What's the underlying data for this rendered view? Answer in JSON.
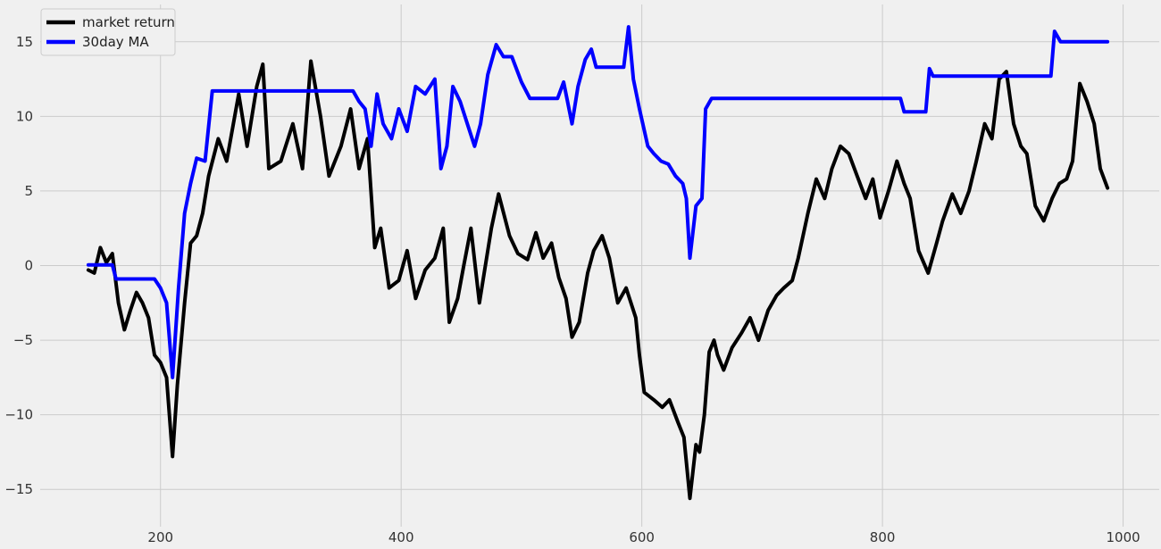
{
  "chart_data": {
    "type": "line",
    "title": "",
    "xlabel": "",
    "ylabel": "",
    "xlim": [
      100,
      1030
    ],
    "ylim": [
      -17.5,
      17.5
    ],
    "xticks": [
      200,
      400,
      600,
      800,
      1000
    ],
    "yticks": [
      -15,
      -10,
      -5,
      0,
      5,
      10,
      15
    ],
    "grid": true,
    "legend": "upper-left",
    "series": [
      {
        "name": "market return",
        "color": "#000000",
        "points": [
          [
            140,
            -0.3
          ],
          [
            145,
            -0.5
          ],
          [
            150,
            1.2
          ],
          [
            155,
            0.2
          ],
          [
            160,
            0.8
          ],
          [
            165,
            -2.5
          ],
          [
            170,
            -4.3
          ],
          [
            175,
            -3.0
          ],
          [
            180,
            -1.8
          ],
          [
            185,
            -2.5
          ],
          [
            190,
            -3.5
          ],
          [
            195,
            -6.0
          ],
          [
            200,
            -6.5
          ],
          [
            205,
            -7.5
          ],
          [
            210,
            -12.8
          ],
          [
            214,
            -8.0
          ],
          [
            220,
            -2.5
          ],
          [
            225,
            1.5
          ],
          [
            230,
            2.0
          ],
          [
            235,
            3.5
          ],
          [
            240,
            6.0
          ],
          [
            248,
            8.5
          ],
          [
            255,
            7.0
          ],
          [
            265,
            11.5
          ],
          [
            272,
            8.0
          ],
          [
            280,
            12.0
          ],
          [
            285,
            13.5
          ],
          [
            290,
            6.5
          ],
          [
            300,
            7.0
          ],
          [
            310,
            9.5
          ],
          [
            318,
            6.5
          ],
          [
            325,
            13.7
          ],
          [
            333,
            10.0
          ],
          [
            340,
            6.0
          ],
          [
            350,
            8.0
          ],
          [
            358,
            10.5
          ],
          [
            365,
            6.5
          ],
          [
            372,
            8.5
          ],
          [
            378,
            1.2
          ],
          [
            383,
            2.5
          ],
          [
            390,
            -1.5
          ],
          [
            398,
            -1.0
          ],
          [
            405,
            1.0
          ],
          [
            412,
            -2.2
          ],
          [
            420,
            -0.3
          ],
          [
            428,
            0.5
          ],
          [
            435,
            2.5
          ],
          [
            440,
            -3.8
          ],
          [
            447,
            -2.2
          ],
          [
            452,
            0.0
          ],
          [
            458,
            2.5
          ],
          [
            465,
            -2.5
          ],
          [
            475,
            2.5
          ],
          [
            481,
            4.8
          ],
          [
            490,
            2.0
          ],
          [
            497,
            0.8
          ],
          [
            505,
            0.4
          ],
          [
            512,
            2.2
          ],
          [
            518,
            0.5
          ],
          [
            525,
            1.5
          ],
          [
            531,
            -0.8
          ],
          [
            537,
            -2.2
          ],
          [
            542,
            -4.8
          ],
          [
            548,
            -3.8
          ],
          [
            555,
            -0.5
          ],
          [
            560,
            1.0
          ],
          [
            567,
            2.0
          ],
          [
            573,
            0.5
          ],
          [
            580,
            -2.5
          ],
          [
            587,
            -1.5
          ],
          [
            595,
            -3.5
          ],
          [
            598,
            -6.0
          ],
          [
            602,
            -8.5
          ],
          [
            610,
            -9.0
          ],
          [
            617,
            -9.5
          ],
          [
            623,
            -9.0
          ],
          [
            630,
            -10.5
          ],
          [
            635,
            -11.5
          ],
          [
            640,
            -15.6
          ],
          [
            645,
            -12.0
          ],
          [
            648,
            -12.5
          ],
          [
            652,
            -10.0
          ],
          [
            656,
            -5.8
          ],
          [
            660,
            -5.0
          ],
          [
            663,
            -6.0
          ],
          [
            668,
            -7.0
          ],
          [
            675,
            -5.5
          ],
          [
            683,
            -4.5
          ],
          [
            690,
            -3.5
          ],
          [
            697,
            -5.0
          ],
          [
            705,
            -3.0
          ],
          [
            712,
            -2.0
          ],
          [
            718,
            -1.5
          ],
          [
            725,
            -1.0
          ],
          [
            730,
            0.5
          ],
          [
            738,
            3.5
          ],
          [
            745,
            5.8
          ],
          [
            752,
            4.5
          ],
          [
            758,
            6.5
          ],
          [
            765,
            8.0
          ],
          [
            772,
            7.5
          ],
          [
            779,
            6.0
          ],
          [
            786,
            4.5
          ],
          [
            792,
            5.8
          ],
          [
            798,
            3.2
          ],
          [
            805,
            5.0
          ],
          [
            812,
            7.0
          ],
          [
            818,
            5.5
          ],
          [
            823,
            4.5
          ],
          [
            830,
            1.0
          ],
          [
            838,
            -0.5
          ],
          [
            845,
            1.5
          ],
          [
            850,
            3.0
          ],
          [
            858,
            4.8
          ],
          [
            865,
            3.5
          ],
          [
            872,
            5.0
          ],
          [
            878,
            7.0
          ],
          [
            885,
            9.5
          ],
          [
            891,
            8.5
          ],
          [
            897,
            12.5
          ],
          [
            903,
            13.0
          ],
          [
            909,
            9.5
          ],
          [
            915,
            8.0
          ],
          [
            920,
            7.5
          ],
          [
            927,
            4.0
          ],
          [
            934,
            3.0
          ],
          [
            941,
            4.5
          ],
          [
            947,
            5.5
          ],
          [
            953,
            5.8
          ],
          [
            958,
            7.0
          ],
          [
            964,
            12.2
          ],
          [
            970,
            11.0
          ],
          [
            976,
            9.5
          ],
          [
            981,
            6.5
          ],
          [
            987,
            5.2
          ]
        ]
      },
      {
        "name": "30day MA",
        "color": "#0000ff",
        "points": [
          [
            140,
            0.05
          ],
          [
            160,
            0.05
          ],
          [
            163,
            -0.9
          ],
          [
            195,
            -0.9
          ],
          [
            200,
            -1.5
          ],
          [
            205,
            -2.5
          ],
          [
            210,
            -7.5
          ],
          [
            215,
            -1.5
          ],
          [
            220,
            3.5
          ],
          [
            225,
            5.5
          ],
          [
            230,
            7.2
          ],
          [
            237,
            7.0
          ],
          [
            243,
            11.7
          ],
          [
            360,
            11.7
          ],
          [
            365,
            11.0
          ],
          [
            370,
            10.5
          ],
          [
            375,
            8.0
          ],
          [
            380,
            11.5
          ],
          [
            385,
            9.5
          ],
          [
            392,
            8.5
          ],
          [
            398,
            10.5
          ],
          [
            405,
            9.0
          ],
          [
            412,
            12.0
          ],
          [
            420,
            11.5
          ],
          [
            428,
            12.5
          ],
          [
            433,
            6.5
          ],
          [
            438,
            8.0
          ],
          [
            443,
            12.0
          ],
          [
            449,
            11.0
          ],
          [
            455,
            9.5
          ],
          [
            461,
            8.0
          ],
          [
            466,
            9.5
          ],
          [
            472,
            12.8
          ],
          [
            479,
            14.8
          ],
          [
            485,
            14.0
          ],
          [
            492,
            14.0
          ],
          [
            500,
            12.3
          ],
          [
            507,
            11.2
          ],
          [
            530,
            11.2
          ],
          [
            535,
            12.3
          ],
          [
            542,
            9.5
          ],
          [
            547,
            12.0
          ],
          [
            553,
            13.8
          ],
          [
            558,
            14.5
          ],
          [
            562,
            13.3
          ],
          [
            585,
            13.3
          ],
          [
            589,
            16.0
          ],
          [
            593,
            12.5
          ],
          [
            598,
            10.5
          ],
          [
            605,
            8.0
          ],
          [
            610,
            7.5
          ],
          [
            616,
            7.0
          ],
          [
            622,
            6.8
          ],
          [
            628,
            6.0
          ],
          [
            634,
            5.5
          ],
          [
            637,
            4.5
          ],
          [
            640,
            0.5
          ],
          [
            645,
            4.0
          ],
          [
            650,
            4.5
          ],
          [
            653,
            10.5
          ],
          [
            658,
            11.2
          ],
          [
            815,
            11.2
          ],
          [
            818,
            10.3
          ],
          [
            836,
            10.3
          ],
          [
            839,
            13.2
          ],
          [
            842,
            12.7
          ],
          [
            940,
            12.7
          ],
          [
            943,
            15.7
          ],
          [
            948,
            15.0
          ],
          [
            987,
            15.0
          ]
        ]
      }
    ]
  }
}
